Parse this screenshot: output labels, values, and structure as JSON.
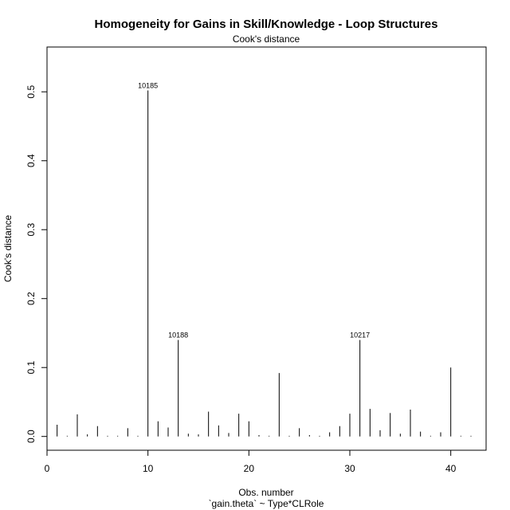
{
  "chart_data": {
    "type": "bar",
    "title": "Homogeneity for Gains in Skill/Knowledge - Loop Structures",
    "subtitle": "Cook's distance",
    "xlabel": "Obs. number",
    "xlabel2": "`gain.theta` ~ Type*CLRole",
    "ylabel": "Cook's distance",
    "xlim": [
      0,
      43.5
    ],
    "ylim": [
      -0.02,
      0.565
    ],
    "x_ticks": [
      0,
      10,
      20,
      30,
      40
    ],
    "y_ticks": [
      0.0,
      0.1,
      0.2,
      0.3,
      0.4,
      0.5
    ],
    "y_tick_labels": [
      "0.0",
      "0.1",
      "0.2",
      "0.3",
      "0.4",
      "0.5"
    ],
    "grid": false,
    "x": [
      1,
      2,
      3,
      4,
      5,
      6,
      7,
      8,
      9,
      10,
      11,
      12,
      13,
      14,
      15,
      16,
      17,
      18,
      19,
      20,
      21,
      22,
      23,
      24,
      25,
      26,
      27,
      28,
      29,
      30,
      31,
      32,
      33,
      34,
      35,
      36,
      37,
      38,
      39,
      40,
      41,
      42
    ],
    "values": [
      0.017,
      0.001,
      0.032,
      0.003,
      0.015,
      0.001,
      0.001,
      0.012,
      0.001,
      0.502,
      0.022,
      0.013,
      0.14,
      0.004,
      0.003,
      0.036,
      0.016,
      0.005,
      0.033,
      0.022,
      0.002,
      0.001,
      0.092,
      0.001,
      0.012,
      0.002,
      0.001,
      0.006,
      0.015,
      0.033,
      0.14,
      0.04,
      0.009,
      0.034,
      0.004,
      0.039,
      0.007,
      0.001,
      0.006,
      0.1,
      0.001,
      0.001
    ],
    "annotations": [
      {
        "x": 10,
        "label": "10185"
      },
      {
        "x": 13,
        "label": "10188"
      },
      {
        "x": 31,
        "label": "10217"
      }
    ]
  }
}
